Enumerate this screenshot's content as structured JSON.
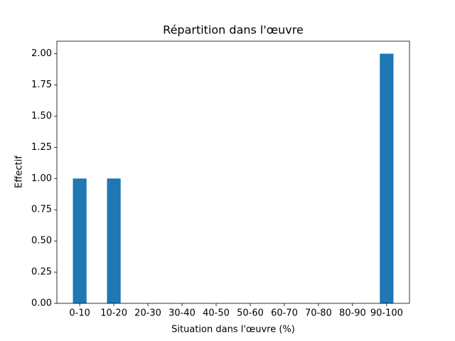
{
  "chart_data": {
    "type": "bar",
    "title": "Répartition dans l'œuvre",
    "x_label": "Situation dans l'œuvre (%)",
    "y_label": "Effectif",
    "categories": [
      "0-10",
      "10-20",
      "20-30",
      "30-40",
      "40-50",
      "50-60",
      "60-70",
      "70-80",
      "80-90",
      "90-100"
    ],
    "values": [
      1,
      1,
      0,
      0,
      0,
      0,
      0,
      0,
      0,
      2
    ],
    "color": "#1f77b4",
    "ylim": [
      0,
      2.1
    ],
    "yticks": [
      {
        "value": 0,
        "label": "0.00"
      },
      {
        "value": 0.25,
        "label": "0.25"
      },
      {
        "value": 0.5,
        "label": "0.50"
      },
      {
        "value": 0.75,
        "label": "0.75"
      },
      {
        "value": 1,
        "label": "1.00"
      },
      {
        "value": 1.25,
        "label": "1.25"
      },
      {
        "value": 1.5,
        "label": "1.50"
      },
      {
        "value": 1.75,
        "label": "1.75"
      },
      {
        "value": 2,
        "label": "2.00"
      }
    ],
    "grid": false
  }
}
